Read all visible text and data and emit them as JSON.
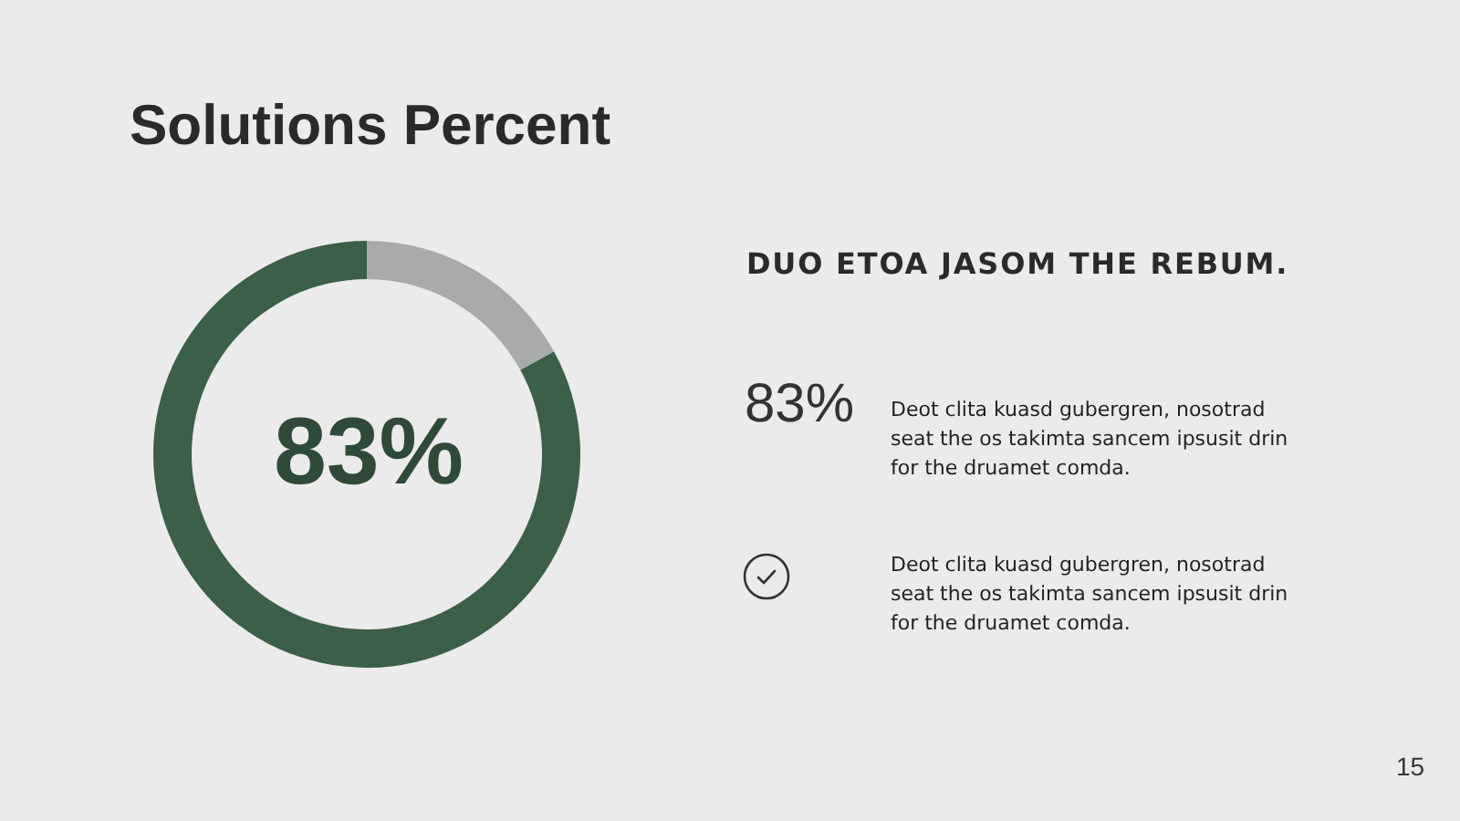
{
  "chart_data": {
    "type": "donut",
    "title": "Solutions Percent",
    "categories": [
      null,
      null
    ],
    "values": [
      83,
      17
    ],
    "colors": [
      "#3b5f47",
      "#a9abab"
    ],
    "annotations": [
      "83%",
      "DUO ETOA JASOM THE REBUM.",
      "83%",
      "Deot clita kuasd gubergren, nosotrad seat the os takimta sancem ipsusit drin for the druamet comda.",
      "Deot clita kuasd gubergren, nosotrad seat the os takimta sancem ipsusit drin for the druamet comda.",
      "15"
    ]
  }
}
